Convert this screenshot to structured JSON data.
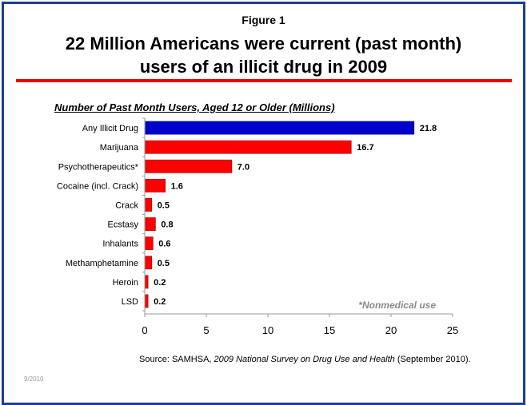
{
  "figure_label": "Figure 1",
  "title_line1": "22 Million Americans were current (past month)",
  "title_line2": "users of an illicit drug in 2009",
  "colors": {
    "frame": "#1f3f8f",
    "rule": "#ee0000",
    "highlight_bar": "#0000cc",
    "bar": "#ff0000"
  },
  "chart_data": {
    "type": "bar",
    "orientation": "horizontal",
    "title": "Number of Past Month Users, Aged 12 or Older (Millions)",
    "xlabel": "",
    "ylabel": "",
    "xlim": [
      0,
      25
    ],
    "xticks": [
      0,
      5,
      10,
      15,
      20,
      25
    ],
    "grid": false,
    "categories": [
      "Any Illicit Drug",
      "Marijuana",
      "Psychotherapeutics*",
      "Cocaine (incl. Crack)",
      "Crack",
      "Ecstasy",
      "Inhalants",
      "Methamphetamine",
      "Heroin",
      "LSD"
    ],
    "values": [
      21.8,
      16.7,
      7.0,
      1.6,
      0.5,
      0.8,
      0.6,
      0.5,
      0.2,
      0.2
    ],
    "value_labels": [
      "21.8",
      "16.7",
      "7.0",
      "1.6",
      "0.5",
      "0.8",
      "0.6",
      "0.5",
      "0.2",
      "0.2"
    ],
    "bar_colors": [
      "#0000cc",
      "#ff0000",
      "#ff0000",
      "#ff0000",
      "#ff0000",
      "#ff0000",
      "#ff0000",
      "#ff0000",
      "#ff0000",
      "#ff0000"
    ],
    "annotation": "*Nonmedical use"
  },
  "source": {
    "prefix": "Source:  SAMHSA, ",
    "italic": "2009 National Survey on Drug Use and Health",
    "suffix": " (September 2010)."
  },
  "date_footer": "9/2010"
}
